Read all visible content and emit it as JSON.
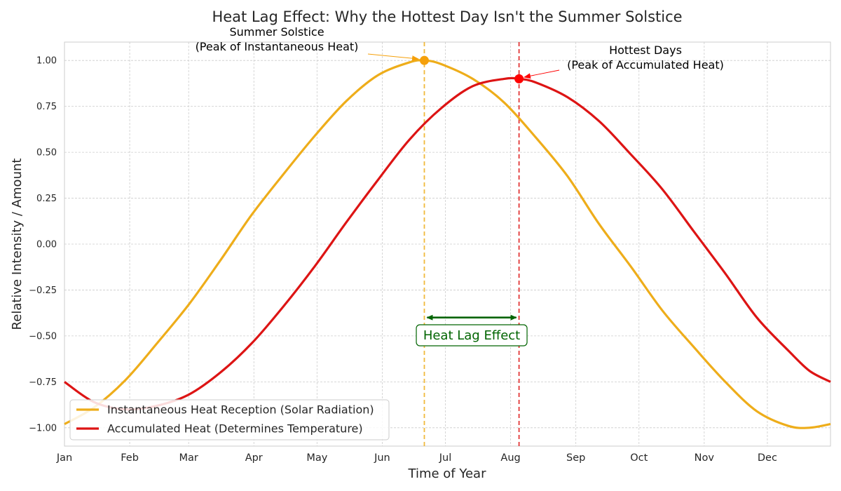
{
  "chart_data": {
    "type": "line",
    "title": "Heat Lag Effect: Why the Hottest Day Isn't the Summer Solstice",
    "xlabel": "Time of Year",
    "ylabel": "Relative Intensity / Amount",
    "xlim": [
      1,
      365
    ],
    "ylim": [
      -1.1,
      1.1
    ],
    "grid": true,
    "legend_position": "lower-left",
    "x_ticks": [
      {
        "label": "Jan",
        "day": 1
      },
      {
        "label": "Feb",
        "day": 32
      },
      {
        "label": "Mar",
        "day": 60
      },
      {
        "label": "Apr",
        "day": 91
      },
      {
        "label": "May",
        "day": 121
      },
      {
        "label": "Jun",
        "day": 152
      },
      {
        "label": "Jul",
        "day": 182
      },
      {
        "label": "Aug",
        "day": 213
      },
      {
        "label": "Sep",
        "day": 244
      },
      {
        "label": "Oct",
        "day": 274
      },
      {
        "label": "Nov",
        "day": 305
      },
      {
        "label": "Dec",
        "day": 335
      }
    ],
    "y_ticks": [
      {
        "label": "1.00",
        "value": 1.0
      },
      {
        "label": "0.75",
        "value": 0.75
      },
      {
        "label": "0.50",
        "value": 0.5
      },
      {
        "label": "0.25",
        "value": 0.25
      },
      {
        "label": "0.00",
        "value": 0.0
      },
      {
        "label": "−0.25",
        "value": -0.25
      },
      {
        "label": "−0.50",
        "value": -0.5
      },
      {
        "label": "−0.75",
        "value": -0.75
      },
      {
        "label": "−1.00",
        "value": -1.0
      }
    ],
    "series": [
      {
        "name": "Instantaneous Heat Reception (Solar Radiation)",
        "color": "#eead1a",
        "x": [
          1,
          15,
          30,
          45,
          60,
          75,
          90,
          105,
          120,
          135,
          150,
          165,
          172,
          180,
          195,
          210,
          225,
          240,
          255,
          270,
          285,
          300,
          315,
          330,
          345,
          355,
          365
        ],
        "y": [
          -0.98,
          -0.89,
          -0.74,
          -0.54,
          -0.33,
          -0.09,
          0.16,
          0.38,
          0.59,
          0.78,
          0.92,
          0.99,
          1.0,
          0.98,
          0.9,
          0.77,
          0.58,
          0.37,
          0.11,
          -0.12,
          -0.36,
          -0.56,
          -0.75,
          -0.91,
          -0.99,
          -1.0,
          -0.98
        ]
      },
      {
        "name": "Accumulated Heat (Determines Temperature)",
        "color": "#dd1414",
        "x": [
          1,
          15,
          30,
          45,
          60,
          75,
          90,
          105,
          120,
          135,
          150,
          165,
          180,
          195,
          210,
          217,
          225,
          240,
          255,
          270,
          285,
          300,
          315,
          330,
          345,
          355,
          365
        ],
        "y": [
          -0.75,
          -0.86,
          -0.9,
          -0.88,
          -0.82,
          -0.7,
          -0.54,
          -0.34,
          -0.12,
          0.12,
          0.35,
          0.57,
          0.74,
          0.86,
          0.9,
          0.9,
          0.88,
          0.8,
          0.67,
          0.49,
          0.3,
          0.07,
          -0.16,
          -0.4,
          -0.58,
          -0.69,
          -0.75
        ]
      }
    ],
    "reference_lines": [
      {
        "day": 172,
        "color": "#eead1a"
      },
      {
        "day": 217,
        "color": "#dd1414"
      }
    ],
    "markers": [
      {
        "day": 172,
        "value": 1.0,
        "color": "#f5a00a"
      },
      {
        "day": 217,
        "value": 0.9,
        "color": "#ff0000"
      }
    ],
    "annotations": [
      {
        "lines": [
          "Summer Solstice",
          "(Peak of Instantaneous Heat)"
        ],
        "target_day": 172,
        "target_value": 1.0
      },
      {
        "lines": [
          "Hottest Days",
          "(Peak of Accumulated Heat)"
        ],
        "target_day": 217,
        "target_value": 0.9
      }
    ],
    "lag": {
      "label": "Heat Lag Effect",
      "from_day": 172,
      "to_day": 217,
      "arrow_value": -0.4,
      "color": "#006400"
    }
  }
}
